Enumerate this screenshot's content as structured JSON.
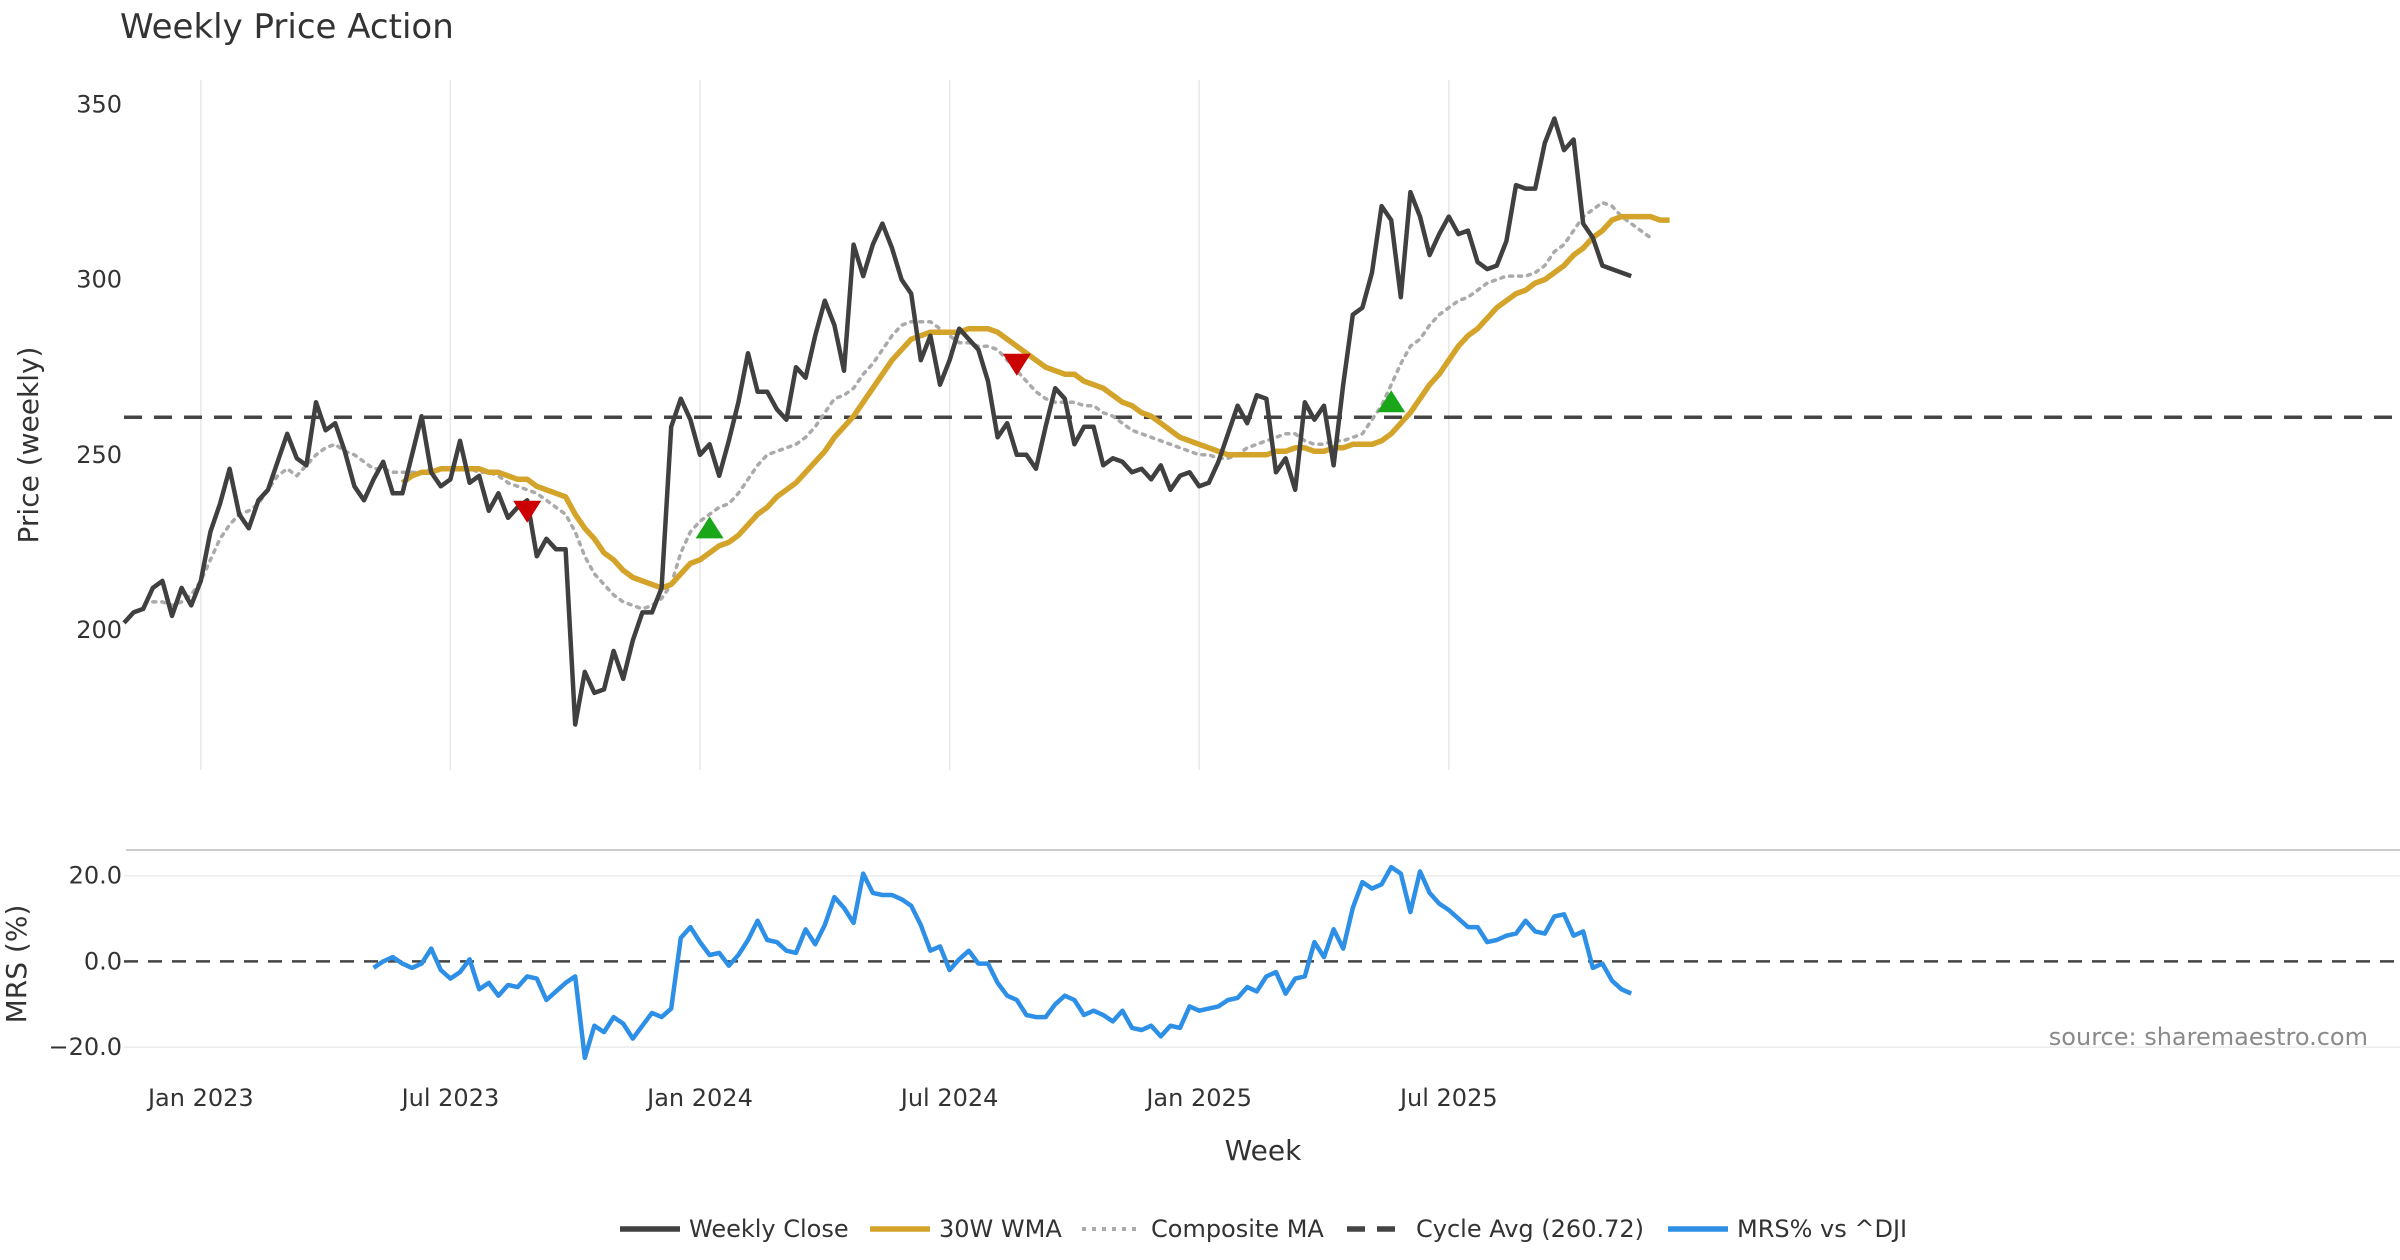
{
  "chart_data": {
    "type": "line",
    "title": "Weekly Price Action",
    "xlabel": "Week",
    "x_tick_labels": [
      "Jan 2023",
      "Jul 2023",
      "Jan 2024",
      "Jul 2024",
      "Jan 2025",
      "Jul 2025"
    ],
    "source": "source: sharemaestro.com",
    "price_panel": {
      "ylabel": "Price (weekly)",
      "ylim": [
        160,
        357
      ],
      "y_ticks": [
        200,
        250,
        300,
        350
      ],
      "cycle_avg": 260.72,
      "series": [
        {
          "name": "Weekly Close",
          "color": "#404040",
          "start_index": 0,
          "values": [
            202,
            205,
            206,
            212,
            214,
            204,
            212,
            207,
            214,
            228,
            236,
            246,
            233,
            229,
            237,
            240,
            248,
            256,
            249,
            247,
            265,
            257,
            259,
            251,
            241,
            237,
            243,
            248,
            239,
            239,
            250,
            261,
            245,
            241,
            243,
            254,
            242,
            244,
            234,
            239,
            232,
            235,
            237,
            221,
            226,
            223,
            223,
            173,
            188,
            182,
            183,
            194,
            186,
            197,
            205,
            205,
            212,
            258,
            266,
            260,
            250,
            253,
            244,
            254,
            265,
            279,
            268,
            268,
            263,
            260,
            275,
            272,
            284,
            294,
            287,
            274,
            310,
            301,
            310,
            316,
            309,
            300,
            296,
            277,
            284,
            270,
            277,
            286,
            283,
            280,
            271,
            255,
            259,
            250,
            250,
            246,
            258,
            269,
            266,
            253,
            258,
            258,
            247,
            249,
            248,
            245,
            246,
            243,
            247,
            240,
            244,
            245,
            241,
            242,
            248,
            256,
            264,
            259,
            267,
            266,
            245,
            249,
            240,
            265,
            260,
            264,
            247,
            270,
            290,
            292,
            302,
            321,
            317,
            295,
            325,
            318,
            307,
            313,
            318,
            313,
            314,
            305,
            303,
            304,
            311,
            327,
            326,
            326,
            339,
            346,
            337,
            340,
            316,
            312,
            304,
            303,
            302,
            301
          ]
        },
        {
          "name": "30W WMA",
          "color": "#d4a32a",
          "start_index": 29,
          "values": [
            242,
            244,
            245,
            245,
            246,
            246,
            246,
            246,
            246,
            245,
            245,
            244,
            243,
            243,
            241,
            240,
            239,
            238,
            233,
            229,
            226,
            222,
            220,
            217,
            215,
            214,
            213,
            212,
            213,
            216,
            219,
            220,
            222,
            224,
            225,
            227,
            230,
            233,
            235,
            238,
            240,
            242,
            245,
            248,
            251,
            255,
            258,
            261,
            265,
            269,
            273,
            277,
            280,
            283,
            284,
            285,
            285,
            285,
            285,
            286,
            286,
            286,
            285,
            283,
            281,
            279,
            277,
            275,
            274,
            273,
            273,
            271,
            270,
            269,
            267,
            265,
            264,
            262,
            261,
            259,
            257,
            255,
            254,
            253,
            252,
            251,
            250,
            250,
            250,
            250,
            250,
            251,
            251,
            252,
            252,
            251,
            251,
            252,
            252,
            253,
            253,
            253,
            254,
            256,
            259,
            262,
            266,
            270,
            273,
            277,
            281,
            284,
            286,
            289,
            292,
            294,
            296,
            297,
            299,
            300,
            302,
            304,
            307,
            309,
            312,
            314,
            317,
            318,
            318,
            318,
            318,
            317,
            317
          ]
        },
        {
          "name": "Composite MA",
          "color": "#aaaaaa",
          "dashed": "dotted",
          "start_index": 3,
          "values": [
            208,
            208,
            207,
            208,
            210,
            214,
            220,
            226,
            230,
            233,
            234,
            236,
            240,
            244,
            246,
            244,
            247,
            250,
            252,
            253,
            251,
            250,
            248,
            246,
            246,
            245,
            245,
            245,
            245,
            246,
            246,
            246,
            246,
            246,
            245,
            245,
            244,
            242,
            241,
            240,
            239,
            237,
            235,
            233,
            228,
            221,
            216,
            213,
            210,
            208,
            207,
            206,
            207,
            209,
            213,
            222,
            228,
            231,
            233,
            235,
            236,
            239,
            243,
            247,
            250,
            251,
            252,
            253,
            255,
            258,
            262,
            266,
            267,
            269,
            273,
            276,
            280,
            284,
            287,
            288,
            288,
            288,
            286,
            284,
            282,
            282,
            281,
            281,
            280,
            277,
            274,
            271,
            268,
            266,
            265,
            265,
            265,
            264,
            264,
            262,
            261,
            259,
            257,
            256,
            255,
            254,
            253,
            252,
            251,
            250,
            250,
            249,
            249,
            250,
            252,
            253,
            254,
            255,
            256,
            256,
            254,
            253,
            253,
            254,
            254,
            255,
            256,
            260,
            264,
            270,
            276,
            281,
            283,
            287,
            290,
            292,
            294,
            295,
            297,
            299,
            300,
            301,
            301,
            301,
            302,
            304,
            308,
            310,
            314,
            318,
            320,
            322,
            321,
            318,
            316,
            314,
            312
          ]
        },
        {
          "name": "Cycle Avg (260.72)",
          "color": "#444444",
          "dashed": "dashed"
        }
      ],
      "signals": [
        {
          "type": "sell",
          "index": 42,
          "value": 234,
          "color": "#cc0000"
        },
        {
          "type": "buy",
          "index": 61,
          "value": 229,
          "color": "#19a619"
        },
        {
          "type": "sell",
          "index": 93,
          "value": 276,
          "color": "#cc0000"
        },
        {
          "type": "buy",
          "index": 132,
          "value": 265,
          "color": "#19a619"
        }
      ]
    },
    "mrs_panel": {
      "ylabel": "MRS (%)",
      "ylim": [
        -23,
        26
      ],
      "y_ticks": [
        20.0,
        0.0,
        -20.0
      ],
      "y_tick_labels": [
        "20.0",
        "0.0",
        "−20.0"
      ],
      "series": [
        {
          "name": "MRS% vs ^DJI",
          "color": "#2e8fe6",
          "start_index": 26,
          "values": [
            -1.5,
            0,
            1,
            -0.5,
            -1.5,
            -0.5,
            3,
            -2,
            -4,
            -2.5,
            0.5,
            -6.5,
            -5,
            -8,
            -5.5,
            -6,
            -3.5,
            -4,
            -9,
            -7,
            -5,
            -3.5,
            -22.5,
            -15,
            -16.5,
            -13,
            -14.5,
            -18,
            -15,
            -12,
            -13,
            -11,
            5.5,
            8,
            4.5,
            1.5,
            2,
            -1,
            1.5,
            5,
            9.5,
            5,
            4.5,
            2.5,
            2,
            7.5,
            4,
            8.5,
            15,
            12.5,
            9,
            20.5,
            16,
            15.5,
            15.5,
            14.5,
            13,
            8.5,
            2.5,
            3.5,
            -2,
            0.5,
            2.5,
            -0.5,
            -0.5,
            -5,
            -8,
            -9,
            -12.5,
            -13,
            -13,
            -10,
            -8,
            -9,
            -12.5,
            -11.5,
            -12.5,
            -14,
            -11.5,
            -15.5,
            -16,
            -15,
            -17.5,
            -15,
            -15.5,
            -10.5,
            -11.5,
            -11,
            -10.5,
            -9,
            -8.5,
            -6,
            -7,
            -3.5,
            -2.5,
            -7.5,
            -4,
            -3.5,
            4.5,
            1,
            7.5,
            3,
            12.5,
            18.5,
            17,
            18,
            22,
            20.5,
            11.5,
            21,
            16,
            13.5,
            12,
            10,
            8,
            8,
            4.5,
            5,
            6,
            6.5,
            9.5,
            7,
            6.5,
            10.5,
            11,
            6,
            7,
            -1.5,
            -0.5,
            -4.5,
            -6.5,
            -7.5
          ]
        },
        {
          "name": "zero line",
          "dashed": "dashed",
          "color": "#444444"
        }
      ]
    },
    "legend": [
      {
        "label": "Weekly Close",
        "color": "#404040",
        "style": "solid"
      },
      {
        "label": "30W WMA",
        "color": "#d4a32a",
        "style": "solid"
      },
      {
        "label": "Composite MA",
        "color": "#aaaaaa",
        "style": "dotted"
      },
      {
        "label": "Cycle Avg (260.72)",
        "color": "#444444",
        "style": "dashed"
      },
      {
        "label": "MRS% vs ^DJI",
        "color": "#2e8fe6",
        "style": "solid"
      }
    ]
  }
}
